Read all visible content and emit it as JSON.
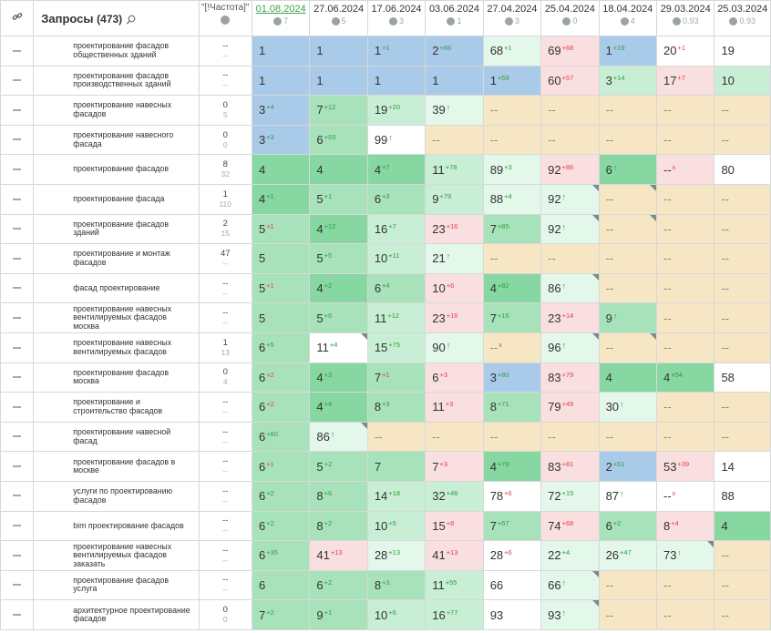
{
  "header": {
    "link_icon": "link-icon",
    "query_title": "Запросы",
    "query_count": "(473)",
    "search_icon": "search-icon",
    "freq_label": "\"[!Частота]\"",
    "globe_icon": "globe-icon",
    "dates": [
      {
        "date": "01.08.2024",
        "sub": "7"
      },
      {
        "date": "27.06.2024",
        "sub": "5"
      },
      {
        "date": "17.06.2024",
        "sub": "3"
      },
      {
        "date": "03.06.2024",
        "sub": "1"
      },
      {
        "date": "27.04.2024",
        "sub": "3"
      },
      {
        "date": "25.04.2024",
        "sub": "0"
      },
      {
        "date": "18.04.2024",
        "sub": "4"
      },
      {
        "date": "29.03.2024",
        "sub": "0.93"
      },
      {
        "date": "25.03.2024",
        "sub": "0.93"
      }
    ]
  },
  "rows": [
    {
      "query": "проектирование фасадов общественных зданий",
      "freq1": "--",
      "freq2": "--",
      "cells": [
        [
          "1",
          "",
          "",
          "top"
        ],
        [
          "1",
          "",
          "",
          "top"
        ],
        [
          "1",
          "+1",
          "up",
          "top"
        ],
        [
          "2",
          "+66",
          "up",
          "top"
        ],
        [
          "68",
          "+1",
          "up",
          "g4"
        ],
        [
          "69",
          "+68",
          "dn",
          "red"
        ],
        [
          "1",
          "+19",
          "up",
          "top"
        ],
        [
          "20",
          "+1",
          "dn",
          "white"
        ],
        [
          "19",
          "",
          "",
          "white"
        ]
      ]
    },
    {
      "query": "проектирование фасадов производственных зданий",
      "freq1": "--",
      "freq2": "--",
      "cells": [
        [
          "1",
          "",
          "",
          "top"
        ],
        [
          "1",
          "",
          "",
          "top"
        ],
        [
          "1",
          "",
          "",
          "top"
        ],
        [
          "1",
          "",
          "",
          "top"
        ],
        [
          "1",
          "+59",
          "up",
          "top"
        ],
        [
          "60",
          "+57",
          "dn",
          "red"
        ],
        [
          "3",
          "+14",
          "up",
          "g3"
        ],
        [
          "17",
          "+7",
          "dn",
          "red"
        ],
        [
          "10",
          "",
          "",
          "g3"
        ]
      ]
    },
    {
      "query": "проектирование навесных фасадов",
      "freq1": "0",
      "freq2": "5",
      "cells": [
        [
          "3",
          "+4",
          "up",
          "top"
        ],
        [
          "7",
          "+12",
          "up",
          "g2"
        ],
        [
          "19",
          "+20",
          "up",
          "g3"
        ],
        [
          "39",
          "↑",
          "nw",
          "g4"
        ],
        [
          "--",
          "",
          "",
          "none"
        ],
        [
          "--",
          "",
          "",
          "none"
        ],
        [
          "--",
          "",
          "",
          "none"
        ],
        [
          "--",
          "",
          "",
          "none"
        ],
        [
          "--",
          "",
          "",
          "none"
        ]
      ]
    },
    {
      "query": "проектирование навесного фасада",
      "freq1": "0",
      "freq2": "0",
      "cells": [
        [
          "3",
          "+3",
          "up",
          "top"
        ],
        [
          "6",
          "+93",
          "up",
          "g2"
        ],
        [
          "99",
          "↑",
          "nw",
          "white"
        ],
        [
          "--",
          "",
          "",
          "none"
        ],
        [
          "--",
          "",
          "",
          "none"
        ],
        [
          "--",
          "",
          "",
          "none"
        ],
        [
          "--",
          "",
          "",
          "none"
        ],
        [
          "--",
          "",
          "",
          "none"
        ],
        [
          "--",
          "",
          "",
          "none"
        ]
      ]
    },
    {
      "query": "проектирование фасадов",
      "freq1": "8",
      "freq2": "32",
      "cells": [
        [
          "4",
          "",
          "",
          "g1"
        ],
        [
          "4",
          "",
          "",
          "g1"
        ],
        [
          "4",
          "+7",
          "up",
          "g1"
        ],
        [
          "11",
          "+78",
          "up",
          "g3"
        ],
        [
          "89",
          "+3",
          "up",
          "g4"
        ],
        [
          "92",
          "+86",
          "dn",
          "red"
        ],
        [
          "6",
          "↑",
          "nw",
          "g1"
        ],
        [
          "--",
          "x",
          "x",
          "red"
        ],
        [
          "80",
          "",
          "",
          "white"
        ]
      ]
    },
    {
      "query": "проектирование фасада",
      "freq1": "1",
      "freq2": "110",
      "cells": [
        [
          "4",
          "+1",
          "up",
          "g1"
        ],
        [
          "5",
          "+1",
          "up",
          "g2"
        ],
        [
          "6",
          "+3",
          "up",
          "g2"
        ],
        [
          "9",
          "+79",
          "up",
          "g3"
        ],
        [
          "88",
          "+4",
          "up",
          "g4"
        ],
        [
          "92",
          "↑",
          "nw",
          "g4",
          "tri"
        ],
        [
          "--",
          "",
          "",
          "none",
          "tri"
        ],
        [
          "--",
          "",
          "",
          "none"
        ],
        [
          "--",
          "",
          "",
          "none"
        ]
      ]
    },
    {
      "query": "проектирование фасадов зданий",
      "freq1": "2",
      "freq2": "15",
      "cells": [
        [
          "5",
          "+1",
          "dn",
          "g2"
        ],
        [
          "4",
          "+12",
          "up",
          "g1"
        ],
        [
          "16",
          "+7",
          "up",
          "g3"
        ],
        [
          "23",
          "+16",
          "dn",
          "red"
        ],
        [
          "7",
          "+85",
          "up",
          "g2"
        ],
        [
          "92",
          "↑",
          "nw",
          "g4",
          "tri"
        ],
        [
          "--",
          "",
          "",
          "none",
          "tri"
        ],
        [
          "--",
          "",
          "",
          "none"
        ],
        [
          "--",
          "",
          "",
          "none"
        ]
      ]
    },
    {
      "query": "проектирование и монтаж фасадов",
      "freq1": "47",
      "freq2": "--",
      "cells": [
        [
          "5",
          "",
          "",
          "g2"
        ],
        [
          "5",
          "+5",
          "up",
          "g2"
        ],
        [
          "10",
          "+11",
          "up",
          "g3"
        ],
        [
          "21",
          "↑",
          "nw",
          "g4"
        ],
        [
          "--",
          "",
          "",
          "none"
        ],
        [
          "--",
          "",
          "",
          "none"
        ],
        [
          "--",
          "",
          "",
          "none"
        ],
        [
          "--",
          "",
          "",
          "none"
        ],
        [
          "--",
          "",
          "",
          "none"
        ]
      ]
    },
    {
      "query": "фасад проектирование",
      "freq1": "--",
      "freq2": "--",
      "cells": [
        [
          "5",
          "+1",
          "dn",
          "g2"
        ],
        [
          "4",
          "+2",
          "up",
          "g1"
        ],
        [
          "6",
          "+4",
          "up",
          "g2"
        ],
        [
          "10",
          "+6",
          "dn",
          "red"
        ],
        [
          "4",
          "+82",
          "up",
          "g1"
        ],
        [
          "86",
          "↑",
          "nw",
          "g4",
          "tri"
        ],
        [
          "--",
          "",
          "",
          "none"
        ],
        [
          "--",
          "",
          "",
          "none"
        ],
        [
          "--",
          "",
          "",
          "none"
        ]
      ]
    },
    {
      "query": "проектирование навесных вентилируемых фасадов москва",
      "freq1": "--",
      "freq2": "--",
      "cells": [
        [
          "5",
          "",
          "",
          "g2"
        ],
        [
          "5",
          "+6",
          "up",
          "g2"
        ],
        [
          "11",
          "+12",
          "up",
          "g3"
        ],
        [
          "23",
          "+16",
          "dn",
          "red"
        ],
        [
          "7",
          "+16",
          "up",
          "g2"
        ],
        [
          "23",
          "+14",
          "dn",
          "red"
        ],
        [
          "9",
          "↑",
          "nw",
          "g2"
        ],
        [
          "--",
          "",
          "",
          "none"
        ],
        [
          "--",
          "",
          "",
          "none"
        ]
      ]
    },
    {
      "query": "проектирование навесных вентилируемых фасадов",
      "freq1": "1",
      "freq2": "13",
      "cells": [
        [
          "6",
          "+5",
          "up",
          "g2"
        ],
        [
          "11",
          "+4",
          "up",
          "white",
          "tri"
        ],
        [
          "15",
          "+75",
          "up",
          "g3"
        ],
        [
          "90",
          "↑",
          "nw",
          "g4"
        ],
        [
          "--",
          "x",
          "x",
          "none"
        ],
        [
          "96",
          "↑",
          "nw",
          "g4",
          "tri"
        ],
        [
          "--",
          "",
          "",
          "none",
          "tri"
        ],
        [
          "--",
          "",
          "",
          "none"
        ],
        [
          "--",
          "",
          "",
          "none"
        ]
      ]
    },
    {
      "query": "проектирование фасадов москва",
      "freq1": "0",
      "freq2": "4",
      "cells": [
        [
          "6",
          "+2",
          "dn",
          "g2"
        ],
        [
          "4",
          "+3",
          "up",
          "g1"
        ],
        [
          "7",
          "+1",
          "dn",
          "g2"
        ],
        [
          "6",
          "+3",
          "dn",
          "red"
        ],
        [
          "3",
          "+80",
          "up",
          "top"
        ],
        [
          "83",
          "+79",
          "dn",
          "red"
        ],
        [
          "4",
          "",
          "",
          "g1"
        ],
        [
          "4",
          "+54",
          "up",
          "g1"
        ],
        [
          "58",
          "",
          "",
          "white"
        ]
      ]
    },
    {
      "query": "проектирование и строительство фасадов",
      "freq1": "--",
      "freq2": "--",
      "cells": [
        [
          "6",
          "+2",
          "dn",
          "g2"
        ],
        [
          "4",
          "+4",
          "up",
          "g1"
        ],
        [
          "8",
          "+3",
          "up",
          "g2"
        ],
        [
          "11",
          "+3",
          "dn",
          "red"
        ],
        [
          "8",
          "+71",
          "up",
          "g2"
        ],
        [
          "79",
          "+49",
          "dn",
          "red"
        ],
        [
          "30",
          "↑",
          "nw",
          "g4"
        ],
        [
          "--",
          "",
          "",
          "none"
        ],
        [
          "--",
          "",
          "",
          "none"
        ]
      ]
    },
    {
      "query": "проектирование навесной фасад",
      "freq1": "--",
      "freq2": "--",
      "cells": [
        [
          "6",
          "+80",
          "up",
          "g2"
        ],
        [
          "86",
          "↑",
          "nw",
          "g4",
          "tri"
        ],
        [
          "--",
          "",
          "",
          "none"
        ],
        [
          "--",
          "",
          "",
          "none"
        ],
        [
          "--",
          "",
          "",
          "none"
        ],
        [
          "--",
          "",
          "",
          "none"
        ],
        [
          "--",
          "",
          "",
          "none"
        ],
        [
          "--",
          "",
          "",
          "none"
        ],
        [
          "--",
          "",
          "",
          "none"
        ]
      ]
    },
    {
      "query": "проектирование фасадов в москве",
      "freq1": "--",
      "freq2": "--",
      "cells": [
        [
          "6",
          "+1",
          "dn",
          "g2"
        ],
        [
          "5",
          "+2",
          "up",
          "g2"
        ],
        [
          "7",
          "",
          "",
          "g2"
        ],
        [
          "7",
          "+3",
          "dn",
          "red"
        ],
        [
          "4",
          "+79",
          "up",
          "g1"
        ],
        [
          "83",
          "+81",
          "dn",
          "red"
        ],
        [
          "2",
          "+51",
          "up",
          "top"
        ],
        [
          "53",
          "+39",
          "dn",
          "red"
        ],
        [
          "14",
          "",
          "",
          "white"
        ]
      ]
    },
    {
      "query": "услуги по проектированию фасадов",
      "freq1": "--",
      "freq2": "--",
      "cells": [
        [
          "6",
          "+2",
          "up",
          "g2"
        ],
        [
          "8",
          "+6",
          "up",
          "g2"
        ],
        [
          "14",
          "+18",
          "up",
          "g3"
        ],
        [
          "32",
          "+46",
          "up",
          "g3"
        ],
        [
          "78",
          "+6",
          "dn",
          "white"
        ],
        [
          "72",
          "+15",
          "up",
          "g4"
        ],
        [
          "87",
          "↑",
          "nw",
          "white"
        ],
        [
          "--",
          "x",
          "x",
          "white"
        ],
        [
          "88",
          "",
          "",
          "white"
        ]
      ]
    },
    {
      "query": "bim проектирование фасадов",
      "freq1": "--",
      "freq2": "--",
      "cells": [
        [
          "6",
          "+2",
          "up",
          "g2"
        ],
        [
          "8",
          "+2",
          "up",
          "g2"
        ],
        [
          "10",
          "+5",
          "up",
          "g3"
        ],
        [
          "15",
          "+8",
          "dn",
          "red"
        ],
        [
          "7",
          "+67",
          "up",
          "g2"
        ],
        [
          "74",
          "+68",
          "dn",
          "red"
        ],
        [
          "6",
          "+2",
          "up",
          "g2"
        ],
        [
          "8",
          "+4",
          "dn",
          "red"
        ],
        [
          "4",
          "",
          "",
          "g1"
        ]
      ]
    },
    {
      "query": "проектирование навесных вентилируемых фасадов заказать",
      "freq1": "--",
      "freq2": "--",
      "cells": [
        [
          "6",
          "+35",
          "up",
          "g2"
        ],
        [
          "41",
          "+13",
          "dn",
          "red"
        ],
        [
          "28",
          "+13",
          "up",
          "g4"
        ],
        [
          "41",
          "+13",
          "dn",
          "red"
        ],
        [
          "28",
          "+6",
          "dn",
          "white"
        ],
        [
          "22",
          "+4",
          "up",
          "g4"
        ],
        [
          "26",
          "+47",
          "up",
          "g4"
        ],
        [
          "73",
          "↑",
          "nw",
          "g4",
          "tri"
        ],
        [
          "--",
          "",
          "",
          "none"
        ]
      ]
    },
    {
      "query": "проектирование фасадов услуга",
      "freq1": "--",
      "freq2": "--",
      "cells": [
        [
          "6",
          "",
          "",
          "g2"
        ],
        [
          "6",
          "+2",
          "up",
          "g2"
        ],
        [
          "8",
          "+3",
          "up",
          "g2"
        ],
        [
          "11",
          "+55",
          "up",
          "g3"
        ],
        [
          "66",
          "",
          "",
          "white"
        ],
        [
          "66",
          "↑",
          "nw",
          "g4",
          "tri"
        ],
        [
          "--",
          "",
          "",
          "none"
        ],
        [
          "--",
          "",
          "",
          "none"
        ],
        [
          "--",
          "",
          "",
          "none"
        ]
      ]
    },
    {
      "query": "архитектурное проектирование фасадов",
      "freq1": "0",
      "freq2": "0",
      "cells": [
        [
          "7",
          "+2",
          "up",
          "g2"
        ],
        [
          "9",
          "+1",
          "up",
          "g2"
        ],
        [
          "10",
          "+6",
          "up",
          "g3"
        ],
        [
          "16",
          "+77",
          "up",
          "g3"
        ],
        [
          "93",
          "",
          "",
          "white"
        ],
        [
          "93",
          "↑",
          "nw",
          "g4",
          "tri"
        ],
        [
          "--",
          "",
          "",
          "none"
        ],
        [
          "--",
          "",
          "",
          "none"
        ],
        [
          "--",
          "",
          "",
          "none"
        ]
      ]
    }
  ]
}
